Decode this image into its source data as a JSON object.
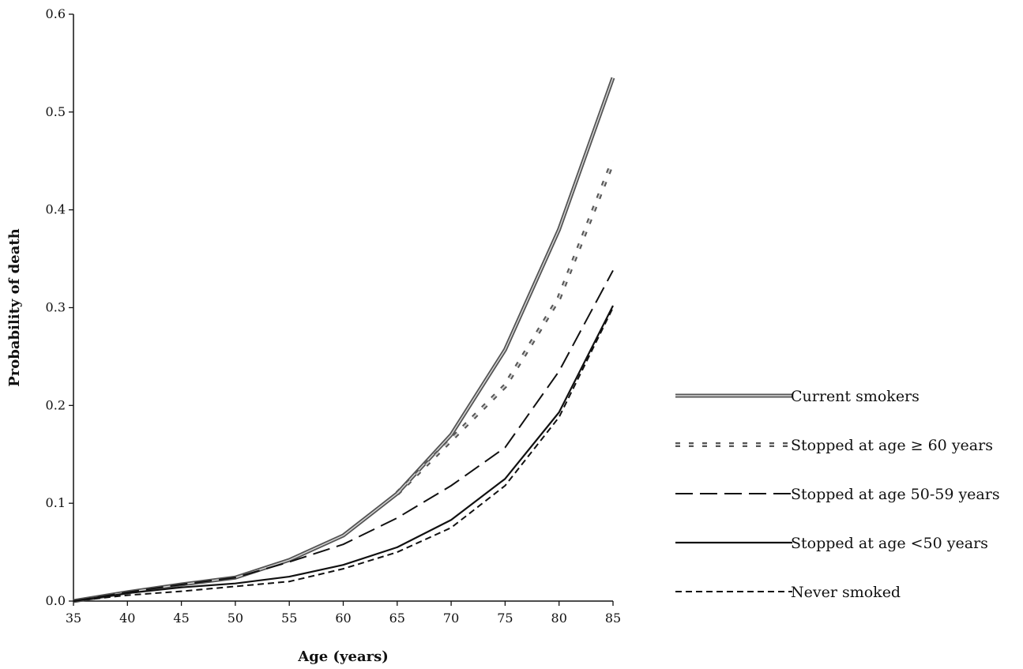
{
  "chart_data": {
    "type": "line",
    "title": "",
    "xlabel": "Age (years)",
    "ylabel": "Probability of death",
    "xlim": [
      35,
      85
    ],
    "ylim": [
      0,
      0.6
    ],
    "x_ticks": [
      "35",
      "40",
      "45",
      "50",
      "55",
      "60",
      "65",
      "70",
      "75",
      "80",
      "85"
    ],
    "y_ticks": [
      "0.0",
      "0.1",
      "0.2",
      "0.3",
      "0.4",
      "0.5",
      "0.6"
    ],
    "grid": false,
    "legend_position": "right",
    "series": [
      {
        "name": "Current smokers",
        "style": "double",
        "color": "#555555",
        "x": [
          35,
          40,
          45,
          50,
          55,
          60,
          65,
          70,
          75,
          80,
          85
        ],
        "y": [
          0.0,
          0.009,
          0.017,
          0.024,
          0.042,
          0.067,
          0.11,
          0.17,
          0.257,
          0.38,
          0.535
        ]
      },
      {
        "name": "Stopped at age ≥ 60 years",
        "style": "dotted",
        "color": "#555555",
        "x": [
          65,
          70,
          75,
          80,
          85
        ],
        "y": [
          0.11,
          0.165,
          0.22,
          0.31,
          0.45
        ]
      },
      {
        "name": "Stopped at age 50-59 years",
        "style": "dashed",
        "color": "#111111",
        "x": [
          35,
          40,
          45,
          50,
          55,
          60,
          65,
          70,
          75,
          80,
          85
        ],
        "y": [
          0.0,
          0.009,
          0.017,
          0.024,
          0.04,
          0.058,
          0.085,
          0.118,
          0.157,
          0.235,
          0.338
        ]
      },
      {
        "name": "Stopped at age <50 years",
        "style": "solid",
        "color": "#111111",
        "x": [
          35,
          40,
          45,
          50,
          55,
          60,
          65,
          70,
          75,
          80,
          85
        ],
        "y": [
          0.0,
          0.008,
          0.014,
          0.018,
          0.025,
          0.037,
          0.055,
          0.083,
          0.125,
          0.193,
          0.302
        ]
      },
      {
        "name": "Never smoked",
        "style": "short-dashed",
        "color": "#111111",
        "x": [
          35,
          40,
          45,
          50,
          55,
          60,
          65,
          70,
          75,
          80,
          85
        ],
        "y": [
          0.0,
          0.006,
          0.01,
          0.015,
          0.02,
          0.033,
          0.05,
          0.075,
          0.118,
          0.188,
          0.3
        ]
      }
    ]
  }
}
